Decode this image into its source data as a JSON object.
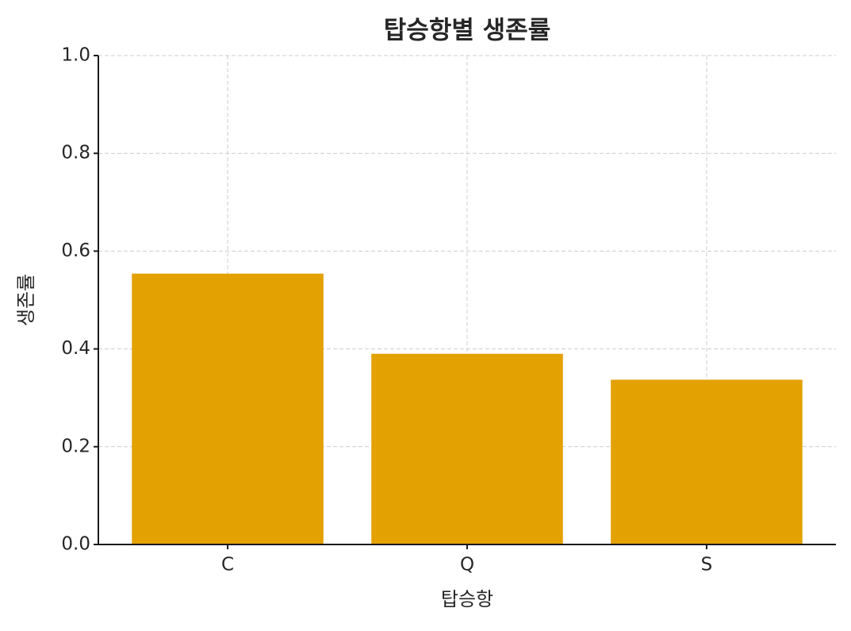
{
  "chart_data": {
    "type": "bar",
    "title": "탑승항별 생존률",
    "x_label": "탑승항",
    "y_label": "생존률",
    "categories": [
      "C",
      "Q",
      "S"
    ],
    "values": [
      0.554,
      0.39,
      0.337
    ],
    "color": "#e3a102",
    "ylim": [
      0,
      1
    ],
    "yticks": [
      {
        "value": 0,
        "label": "0.0"
      },
      0.2,
      0.4,
      0.6,
      0.8,
      {
        "value": 1,
        "label": "1.0"
      }
    ],
    "grid": true
  }
}
